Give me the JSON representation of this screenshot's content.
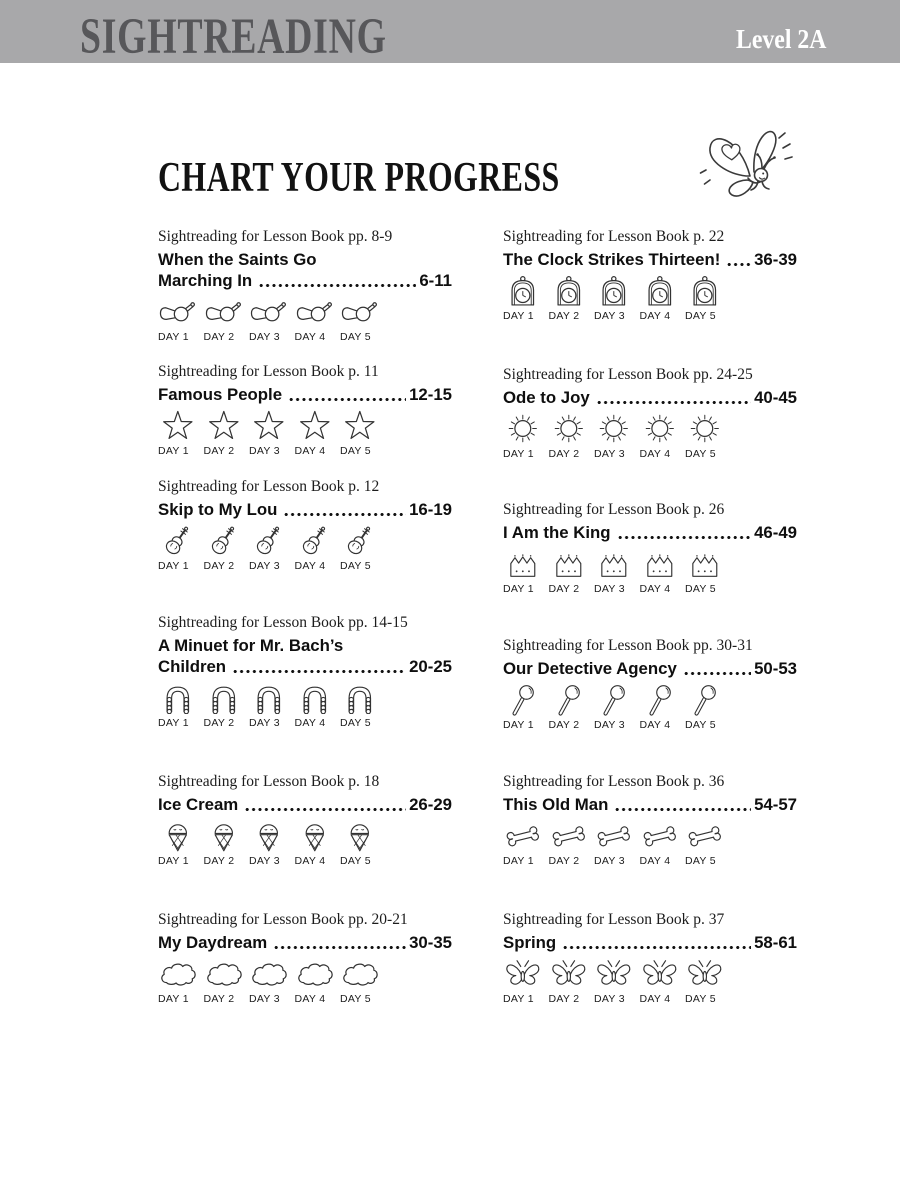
{
  "header": {
    "brand": "SIGHTREADING",
    "level": "Level 2A"
  },
  "page_title": "CHART YOUR PROGRESS",
  "day_labels": [
    "DAY 1",
    "DAY 2",
    "DAY 3",
    "DAY 4",
    "DAY 5"
  ],
  "columns": {
    "left": [
      {
        "caption": "Sightreading for Lesson Book pp. 8-9",
        "title_lines": [
          "When the Saints Go",
          "Marching In"
        ],
        "pages": "6-11",
        "icon": "horn"
      },
      {
        "caption": "Sightreading for Lesson Book p. 11",
        "title_lines": [
          "Famous People"
        ],
        "pages": "12-15",
        "icon": "star"
      },
      {
        "caption": "Sightreading for Lesson Book p. 12",
        "title_lines": [
          "Skip to My Lou"
        ],
        "pages": "16-19",
        "icon": "violin"
      },
      {
        "caption": "Sightreading for Lesson Book pp. 14-15",
        "title_lines": [
          "A Minuet for Mr. Bach’s",
          "Children"
        ],
        "pages": "20-25",
        "icon": "wig"
      },
      {
        "caption": "Sightreading for Lesson Book p. 18",
        "title_lines": [
          "Ice Cream"
        ],
        "pages": "26-29",
        "icon": "ice-cream"
      },
      {
        "caption": "Sightreading for Lesson Book pp. 20-21",
        "title_lines": [
          "My Daydream"
        ],
        "pages": "30-35",
        "icon": "cloud"
      }
    ],
    "right": [
      {
        "caption": "Sightreading for Lesson Book p. 22",
        "title_lines": [
          "The Clock Strikes Thirteen!"
        ],
        "pages": "36-39",
        "icon": "clock"
      },
      {
        "caption": "Sightreading for Lesson Book pp. 24-25",
        "title_lines": [
          "Ode to Joy"
        ],
        "pages": "40-45",
        "icon": "sun"
      },
      {
        "caption": "Sightreading for Lesson Book p. 26",
        "title_lines": [
          "I Am the King"
        ],
        "pages": "46-49",
        "icon": "crown"
      },
      {
        "caption": "Sightreading for Lesson Book pp. 30-31",
        "title_lines": [
          "Our Detective Agency"
        ],
        "pages": "50-53",
        "icon": "magnifying-glass"
      },
      {
        "caption": "Sightreading for Lesson Book p. 36",
        "title_lines": [
          "This Old Man"
        ],
        "pages": "54-57",
        "icon": "bone"
      },
      {
        "caption": "Sightreading for Lesson Book p. 37",
        "title_lines": [
          "Spring"
        ],
        "pages": "58-61",
        "icon": "butterfly"
      }
    ]
  },
  "colors": {
    "header_band": "#a8a8aa",
    "brand_text": "#57575a",
    "level_text": "#ffffff",
    "ink": "#1a1a1a",
    "icon_stroke": "#333333"
  }
}
